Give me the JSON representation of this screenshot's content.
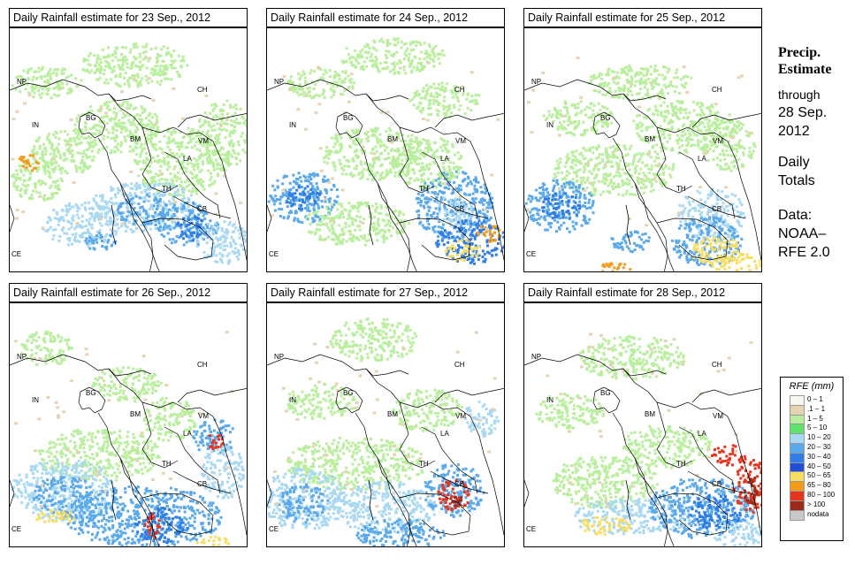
{
  "panels": [
    {
      "title": "Daily Rainfall estimate for  23 Sep., 2012"
    },
    {
      "title": "Daily Rainfall estimate for  24 Sep., 2012"
    },
    {
      "title": "Daily Rainfall estimate for  25 Sep., 2012"
    },
    {
      "title": "Daily Rainfall estimate for  26 Sep., 2012"
    },
    {
      "title": "Daily Rainfall estimate for  27 Sep., 2012"
    },
    {
      "title": "Daily Rainfall estimate for  28 Sep., 2012"
    }
  ],
  "country_labels": [
    "NP",
    "CH",
    "IN",
    "BG",
    "BM",
    "VM",
    "LA",
    "TH",
    "CB",
    "CE"
  ],
  "side": {
    "heading1": "Precip.",
    "heading2": "Estimate",
    "through": "through",
    "date1": "28 Sep.",
    "date2": "2012",
    "daily1": "Daily",
    "daily2": "Totals",
    "data1": "Data:",
    "data2": "NOAA–",
    "data3": "RFE 2.0"
  },
  "legend": {
    "title": "RFE (mm)",
    "items": [
      {
        "label": "0 – 1",
        "color": "#f7f7f0"
      },
      {
        "label": ".1 – 1",
        "color": "#e6d3b3"
      },
      {
        "label": "1 – 5",
        "color": "#b8ee9c"
      },
      {
        "label": "5 – 10",
        "color": "#5fe36b"
      },
      {
        "label": "10 – 20",
        "color": "#a8d8f2"
      },
      {
        "label": "20 – 30",
        "color": "#5aa9ec"
      },
      {
        "label": "30 – 40",
        "color": "#2f7ee6"
      },
      {
        "label": "40 – 50",
        "color": "#1f4fd6"
      },
      {
        "label": "50 – 65",
        "color": "#f7dd62"
      },
      {
        "label": "65 – 80",
        "color": "#f59a1b"
      },
      {
        "label": "80 – 100",
        "color": "#e6351e"
      },
      {
        "label": "> 100",
        "color": "#9c2a1a"
      },
      {
        "label": "nodata",
        "color": "#c8c8c8"
      }
    ]
  }
}
